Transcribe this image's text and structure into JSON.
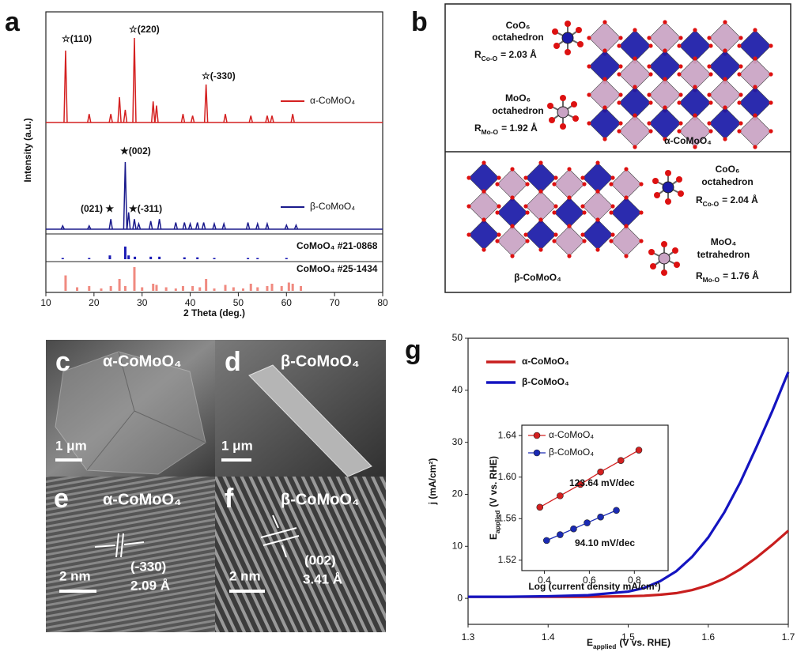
{
  "panels": {
    "a": {
      "label": "a"
    },
    "b": {
      "label": "b",
      "alpha": {
        "co_polyhedron": "CoO₆",
        "co_shape": "octahedron",
        "co_bond": [
          "R",
          "Co-O",
          "= 2.03 Å"
        ],
        "mo_polyhedron": "MoO₆",
        "mo_shape": "octahedron",
        "mo_bond": [
          "R",
          "Mo-O",
          "= 1.92 Å"
        ],
        "phase": "α-CoMoO₄"
      },
      "beta": {
        "co_polyhedron": "CoO₆",
        "co_shape": "octahedron",
        "co_bond": [
          "R",
          "Co-O",
          "= 2.04 Å"
        ],
        "mo_polyhedron": "MoO₄",
        "mo_shape": "tetrahedron",
        "mo_bond": [
          "R",
          "Mo-O",
          "= 1.76 Å"
        ],
        "phase": "β-CoMoO₄"
      }
    },
    "c": {
      "label": "c",
      "phase": "α-CoMoO₄",
      "scale_bar": "1 μm"
    },
    "d": {
      "label": "d",
      "phase": "β-CoMoO₄",
      "scale_bar": "1 μm"
    },
    "e": {
      "label": "e",
      "phase": "α-CoMoO₄",
      "scale_bar": "2 nm",
      "plane": "(-330)",
      "spacing": "2.09 Å"
    },
    "f": {
      "label": "f",
      "phase": "β-CoMoO₄",
      "scale_bar": "2 nm",
      "plane": "(002)",
      "spacing": "3.41 Å"
    },
    "g": {
      "label": "g"
    }
  },
  "chart_data": [
    {
      "type": "spectrum",
      "xlabel": "2 Theta (deg.)",
      "ylabel": "Intensity (a.u.)",
      "xlim": [
        10,
        80
      ],
      "xticks": [
        10,
        20,
        30,
        40,
        50,
        60,
        70,
        80
      ],
      "series": [
        {
          "name": "α-CoMoO₄",
          "color": "#d42020",
          "x": [
            14.1,
            19.0,
            23.5,
            25.3,
            26.5,
            28.4,
            32.3,
            33.0,
            38.5,
            40.5,
            43.3,
            47.3,
            52.6,
            56.0,
            57.0,
            61.3
          ],
          "values": [
            0.85,
            0.1,
            0.1,
            0.3,
            0.15,
            1.0,
            0.25,
            0.2,
            0.1,
            0.08,
            0.45,
            0.1,
            0.08,
            0.08,
            0.08,
            0.1
          ]
        },
        {
          "name": "β-CoMoO₄",
          "color": "#1a1a8c",
          "x": [
            13.5,
            19.0,
            23.5,
            26.5,
            27.2,
            28.4,
            29.3,
            31.8,
            33.6,
            37.0,
            38.8,
            40.0,
            41.5,
            42.8,
            45.0,
            47.0,
            52.0,
            54.0,
            56.0,
            60.0,
            62.0
          ],
          "values": [
            0.05,
            0.05,
            0.15,
            1.0,
            0.25,
            0.15,
            0.08,
            0.12,
            0.15,
            0.1,
            0.1,
            0.08,
            0.1,
            0.1,
            0.08,
            0.08,
            0.1,
            0.08,
            0.08,
            0.06,
            0.06
          ]
        }
      ],
      "references": [
        {
          "name": "CoMoO₄ #21-0868",
          "color": "#1a1ab4",
          "x": [
            13.5,
            19.0,
            23.3,
            26.5,
            27.2,
            28.5,
            31.8,
            33.6,
            38.8,
            41.5,
            45.0,
            52.0,
            54.0,
            60.0
          ],
          "values": [
            0.1,
            0.1,
            0.3,
            1.0,
            0.3,
            0.2,
            0.2,
            0.2,
            0.15,
            0.15,
            0.1,
            0.1,
            0.1,
            0.1
          ]
        },
        {
          "name": "CoMoO₄ #25-1434",
          "color": "#f08a80",
          "x": [
            14.1,
            16.5,
            19.0,
            21.5,
            23.5,
            25.3,
            26.5,
            28.4,
            30.0,
            32.3,
            33.0,
            35.0,
            37.0,
            38.5,
            40.5,
            42.0,
            43.3,
            45.0,
            47.3,
            49.0,
            51.0,
            52.6,
            54.0,
            56.0,
            57.0,
            59.0,
            60.5,
            61.3,
            63.0
          ],
          "values": [
            0.65,
            0.15,
            0.2,
            0.1,
            0.2,
            0.5,
            0.2,
            1.0,
            0.15,
            0.3,
            0.25,
            0.15,
            0.1,
            0.2,
            0.2,
            0.15,
            0.5,
            0.1,
            0.25,
            0.15,
            0.1,
            0.3,
            0.15,
            0.2,
            0.3,
            0.2,
            0.35,
            0.3,
            0.2
          ]
        }
      ],
      "annotations": [
        "☆(110)",
        "☆(220)",
        "☆(-330)",
        "★(002)",
        "(021) ★",
        "★(-311)"
      ]
    },
    {
      "type": "line",
      "xlabel": [
        "E",
        "applied",
        "(V vs. RHE)"
      ],
      "ylabel": "j (mA/cm²)",
      "xlim": [
        1.3,
        1.7
      ],
      "xticks": [
        1.3,
        1.4,
        1.5,
        1.6,
        1.7
      ],
      "ylim": [
        -5,
        50
      ],
      "yticks": [
        0,
        10,
        20,
        30,
        40,
        50
      ],
      "x": [
        1.3,
        1.35,
        1.4,
        1.45,
        1.5,
        1.52,
        1.54,
        1.56,
        1.58,
        1.6,
        1.62,
        1.64,
        1.66,
        1.68,
        1.7
      ],
      "series": [
        {
          "name": "α-CoMoO₄",
          "color": "#c81e1e",
          "values": [
            0.3,
            0.3,
            0.3,
            0.3,
            0.4,
            0.5,
            0.7,
            1.0,
            1.6,
            2.5,
            3.8,
            5.6,
            7.8,
            10.3,
            13.0
          ]
        },
        {
          "name": "β-CoMoO₄",
          "color": "#1414c0",
          "values": [
            0.3,
            0.3,
            0.4,
            0.6,
            1.3,
            2.0,
            3.3,
            5.2,
            8.0,
            11.7,
            16.5,
            22.3,
            29.0,
            36.0,
            43.5
          ]
        }
      ]
    },
    {
      "type": "line",
      "markers": true,
      "xlabel": "Log (current density mA/cm²)",
      "ylabel": [
        "E",
        "applied",
        "(V vs. RHE)"
      ],
      "xlim": [
        0.3,
        0.95
      ],
      "xticks": [
        {
          "value": 0.4,
          "label": "0.4"
        },
        {
          "value": 0.6,
          "label": "0.6"
        },
        {
          "value": 0.8,
          "label": "0.8"
        }
      ],
      "ylim": [
        1.51,
        1.65
      ],
      "yticks": [
        1.52,
        1.56,
        {
          "value": 1.6,
          "label": "1.60"
        },
        1.64
      ],
      "series": [
        {
          "name": "α-CoMoO₄",
          "color": "#d42020",
          "x": [
            0.38,
            0.47,
            0.56,
            0.65,
            0.74,
            0.82
          ],
          "values": [
            1.571,
            1.582,
            1.593,
            1.605,
            1.616,
            1.626
          ]
        },
        {
          "name": "β-CoMoO₄",
          "color": "#1a2ab4",
          "x": [
            0.41,
            0.47,
            0.53,
            0.59,
            0.65,
            0.72
          ],
          "values": [
            1.539,
            1.5446,
            1.5502,
            1.556,
            1.5616,
            1.568
          ]
        }
      ],
      "annotations": [
        {
          "text": "123.64 mV/dec",
          "color": "#d42020"
        },
        {
          "text": "94.10 mV/dec",
          "color": "#1a2ab4"
        }
      ]
    }
  ]
}
